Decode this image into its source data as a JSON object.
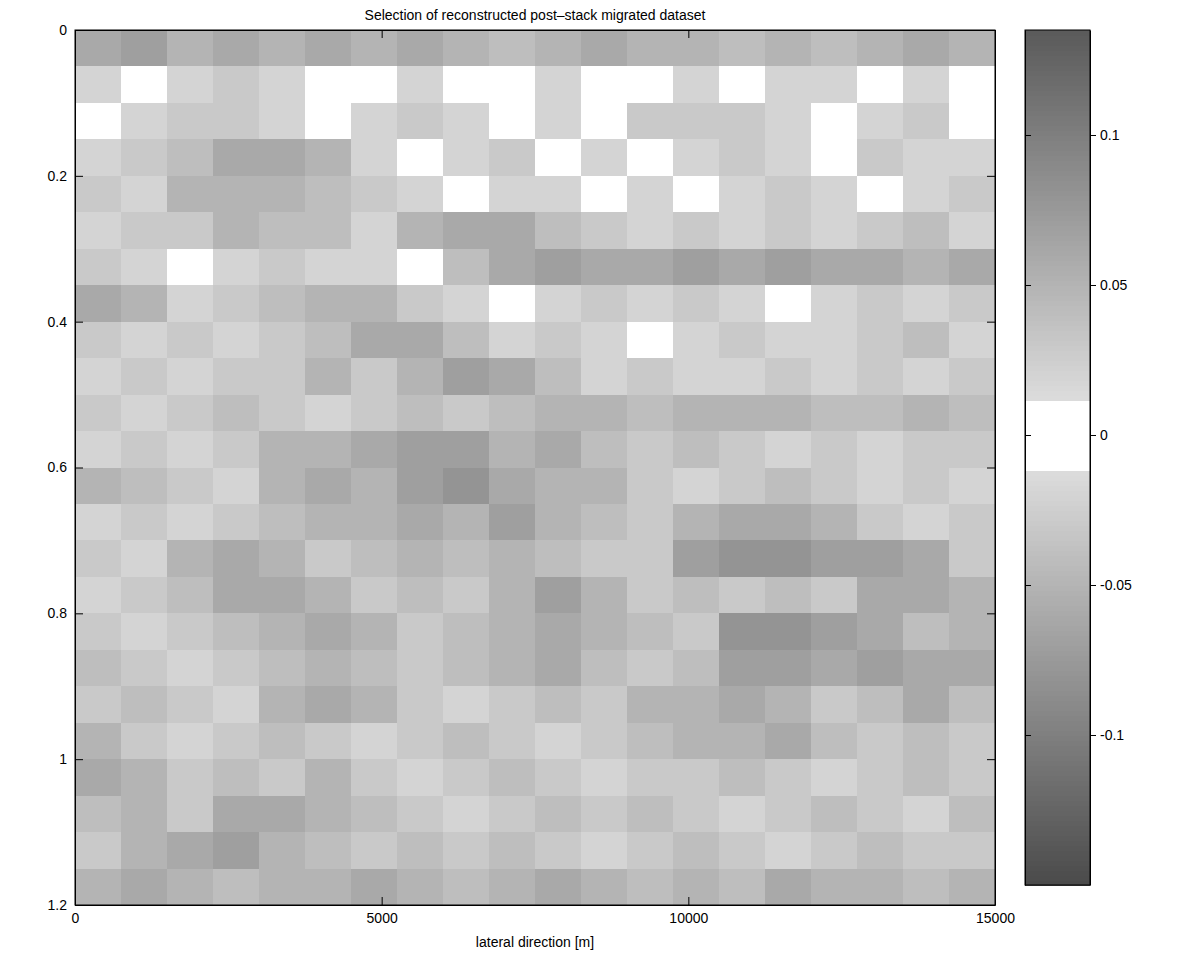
{
  "chart_data": {
    "type": "heatmap",
    "title": "Selection of reconstructed  post–stack migrated dataset",
    "x_label": "lateral direction [m]",
    "xlim": [
      0,
      15000
    ],
    "xticks": [
      0,
      5000,
      10000,
      15000
    ],
    "ylim": [
      0,
      1.2
    ],
    "yticks": [
      0,
      0.2,
      0.4,
      0.6,
      0.8,
      1,
      1.2
    ],
    "x": [
      375,
      1125,
      1875,
      2625,
      3375,
      4125,
      4875,
      5625,
      6375,
      7125,
      7875,
      8625,
      9375,
      10125,
      10875,
      11625,
      12375,
      13125,
      13875,
      14625
    ],
    "y": [
      0.025,
      0.075,
      0.125,
      0.175,
      0.225,
      0.275,
      0.325,
      0.375,
      0.425,
      0.475,
      0.525,
      0.575,
      0.625,
      0.675,
      0.725,
      0.775,
      0.825,
      0.875,
      0.925,
      0.975,
      1.025,
      1.075,
      1.125,
      1.175
    ],
    "z": [
      [
        0.06,
        -0.07,
        0.05,
        0.06,
        -0.05,
        0.06,
        0.05,
        -0.06,
        0.05,
        0.04,
        -0.05,
        0.06,
        0.05,
        -0.05,
        0.04,
        0.05,
        -0.04,
        0.05,
        0.06,
        -0.05
      ],
      [
        0.02,
        0.01,
        -0.02,
        0.03,
        0.02,
        0.01,
        0,
        0.02,
        0.01,
        -0.01,
        0.02,
        0.01,
        0,
        0.02,
        0.01,
        0.02,
        -0.02,
        0.01,
        0.02,
        0.01
      ],
      [
        0.01,
        0.02,
        0.03,
        -0.03,
        0.02,
        0.01,
        0.02,
        0.03,
        -0.02,
        0.01,
        0.02,
        0.01,
        0.03,
        0.03,
        -0.03,
        0.02,
        0.01,
        0.02,
        0.03,
        0.01
      ],
      [
        0.02,
        0.03,
        -0.04,
        0.06,
        -0.06,
        0.05,
        0.02,
        0.01,
        0.02,
        0.03,
        0.01,
        0.02,
        0.01,
        0.02,
        0.03,
        0.02,
        0.01,
        0.03,
        0.02,
        0.02
      ],
      [
        0.03,
        0.02,
        0.05,
        -0.05,
        0.05,
        -0.04,
        0.03,
        0.02,
        0.01,
        0.02,
        0.02,
        0.01,
        0.02,
        0.01,
        0.02,
        0.03,
        0.02,
        0.01,
        0.02,
        0.03
      ],
      [
        0.02,
        0.03,
        -0.03,
        0.05,
        -0.04,
        0.04,
        0.02,
        0.05,
        -0.06,
        0.06,
        -0.04,
        0.03,
        0.02,
        0.03,
        0.02,
        0.03,
        0.02,
        0.03,
        0.04,
        0.02
      ],
      [
        0.03,
        0.02,
        0.01,
        0.02,
        0.03,
        -0.02,
        0.02,
        0.01,
        0.04,
        -0.06,
        0.07,
        -0.06,
        0.06,
        -0.07,
        0.06,
        0.07,
        -0.06,
        0.06,
        -0.05,
        0.06
      ],
      [
        0.06,
        -0.05,
        0.02,
        0.03,
        0.04,
        -0.05,
        0.05,
        0.03,
        0.02,
        0.01,
        0.02,
        0.03,
        0.02,
        0.03,
        0.02,
        0.01,
        0.02,
        0.03,
        0.02,
        0.03
      ],
      [
        0.03,
        0.02,
        0.03,
        0.02,
        0.03,
        0.04,
        -0.06,
        0.06,
        -0.04,
        0.02,
        0.03,
        0.02,
        0.01,
        0.02,
        0.03,
        0.02,
        0.02,
        0.03,
        0.04,
        0.02
      ],
      [
        0.02,
        0.03,
        0.02,
        0.03,
        0.03,
        0.05,
        0.03,
        0.05,
        -0.07,
        0.06,
        -0.04,
        0.02,
        0.03,
        0.02,
        0.02,
        0.03,
        0.02,
        0.03,
        0.02,
        0.03
      ],
      [
        0.03,
        0.02,
        0.03,
        0.04,
        0.03,
        0.02,
        0.03,
        0.04,
        0.03,
        -0.04,
        0.05,
        -0.05,
        0.04,
        0.05,
        -0.05,
        0.05,
        0.04,
        -0.04,
        0.05,
        0.04
      ],
      [
        0.02,
        0.03,
        0.02,
        0.03,
        0.05,
        -0.05,
        0.06,
        -0.07,
        0.07,
        0.05,
        -0.06,
        0.04,
        0.03,
        0.04,
        0.03,
        0.02,
        0.03,
        0.02,
        0.03,
        0.03
      ],
      [
        0.05,
        -0.04,
        0.03,
        0.02,
        0.05,
        0.06,
        -0.05,
        0.07,
        -0.08,
        0.06,
        0.05,
        -0.05,
        0.03,
        0.02,
        0.03,
        0.04,
        0.03,
        0.02,
        0.03,
        0.02
      ],
      [
        0.02,
        0.03,
        0.02,
        0.03,
        0.04,
        -0.05,
        0.05,
        0.06,
        -0.05,
        0.07,
        -0.05,
        0.04,
        0.03,
        0.05,
        -0.06,
        0.06,
        0.05,
        0.03,
        0.02,
        0.03
      ],
      [
        0.03,
        0.02,
        0.05,
        -0.06,
        0.05,
        0.03,
        0.04,
        0.05,
        -0.04,
        0.05,
        0.04,
        0.03,
        0.03,
        -0.07,
        0.08,
        -0.08,
        0.07,
        -0.07,
        0.06,
        0.03
      ],
      [
        0.02,
        0.03,
        0.04,
        0.06,
        -0.06,
        0.05,
        0.03,
        0.04,
        0.03,
        0.05,
        -0.07,
        0.05,
        0.03,
        0.04,
        0.03,
        0.04,
        0.03,
        0.06,
        -0.06,
        0.05
      ],
      [
        0.03,
        0.02,
        0.03,
        0.04,
        0.05,
        -0.06,
        0.05,
        0.03,
        0.04,
        0.05,
        0.06,
        -0.05,
        0.04,
        0.03,
        0.08,
        -0.08,
        0.07,
        -0.06,
        0.04,
        0.05
      ],
      [
        0.04,
        0.03,
        0.02,
        0.03,
        0.04,
        0.05,
        -0.04,
        0.03,
        0.04,
        -0.05,
        0.06,
        0.04,
        0.03,
        0.04,
        -0.07,
        0.07,
        -0.06,
        0.07,
        0.06,
        -0.06
      ],
      [
        0.03,
        0.04,
        0.03,
        0.02,
        0.05,
        -0.06,
        0.05,
        0.03,
        0.02,
        0.03,
        0.04,
        0.03,
        0.05,
        -0.05,
        0.06,
        -0.05,
        0.03,
        0.04,
        0.06,
        0.04
      ],
      [
        0.05,
        0.03,
        0.02,
        0.03,
        0.04,
        0.03,
        0.02,
        0.03,
        0.04,
        0.03,
        0.02,
        0.03,
        0.04,
        -0.05,
        0.05,
        0.06,
        -0.04,
        0.03,
        0.04,
        0.03
      ],
      [
        0.06,
        -0.05,
        0.03,
        0.04,
        0.03,
        0.05,
        0.03,
        0.02,
        0.03,
        0.04,
        0.03,
        0.02,
        0.03,
        0.03,
        0.04,
        0.03,
        0.02,
        0.03,
        0.04,
        0.03
      ],
      [
        0.04,
        0.05,
        0.03,
        -0.06,
        0.06,
        -0.05,
        0.04,
        0.03,
        0.02,
        0.03,
        0.04,
        0.03,
        0.04,
        0.03,
        0.02,
        0.03,
        0.04,
        0.03,
        0.02,
        0.04
      ],
      [
        0.03,
        0.05,
        -0.06,
        0.07,
        -0.05,
        0.04,
        0.03,
        0.04,
        0.03,
        0.04,
        0.03,
        0.02,
        0.03,
        0.04,
        0.03,
        0.02,
        0.03,
        0.04,
        0.03,
        0.03
      ],
      [
        0.05,
        -0.06,
        0.05,
        0.04,
        -0.05,
        0.05,
        0.06,
        -0.05,
        0.04,
        0.05,
        -0.06,
        0.05,
        0.04,
        0.05,
        -0.04,
        0.06,
        0.05,
        -0.05,
        0.04,
        0.05
      ]
    ],
    "colorbar": {
      "range": [
        -0.15,
        0.135
      ],
      "ticks": [
        -0.1,
        -0.05,
        0,
        0.05,
        0.1
      ]
    }
  }
}
